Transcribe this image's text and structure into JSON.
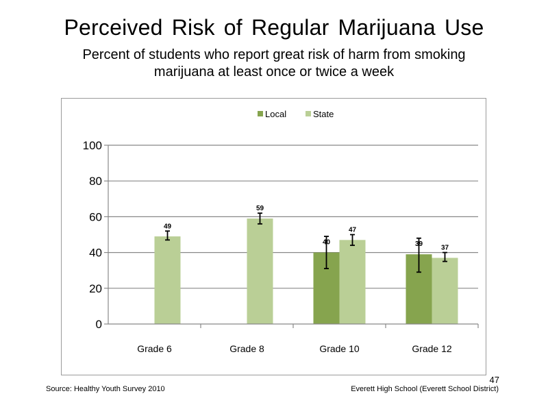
{
  "title": "Perceived  Risk of Regular  Marijuana  Use",
  "subtitle": "Percent of students who report great risk of harm from smoking marijuana  at least once or twice a week",
  "footer": {
    "source": "Source: Healthy Youth Survey 2010",
    "school": "Everett High School (Everett School District)",
    "page_number": "47"
  },
  "colors": {
    "local": "#86A44E",
    "state": "#BACF96",
    "grid": "#888888",
    "frame": "#9A9A9A"
  },
  "chart_data": {
    "type": "bar",
    "categories": [
      "Grade 6",
      "Grade 8",
      "Grade 10",
      "Grade 12"
    ],
    "series": [
      {
        "name": "Local",
        "values": [
          null,
          null,
          40,
          39
        ],
        "labels": [
          "",
          "",
          "40",
          "39"
        ],
        "error_low": [
          null,
          null,
          31,
          29
        ],
        "error_high": [
          null,
          null,
          49,
          48
        ]
      },
      {
        "name": "State",
        "values": [
          49,
          59,
          47,
          37
        ],
        "labels": [
          "49",
          "59",
          "47",
          "37"
        ],
        "error_low": [
          47,
          56,
          44,
          35
        ],
        "error_high": [
          52,
          62,
          50,
          40
        ]
      }
    ],
    "yticks": [
      "0",
      "20",
      "40",
      "60",
      "80",
      "100"
    ],
    "ylim": [
      0,
      100
    ],
    "legend_position": "top",
    "grid": true,
    "title": "",
    "xlabel": "",
    "ylabel": ""
  }
}
